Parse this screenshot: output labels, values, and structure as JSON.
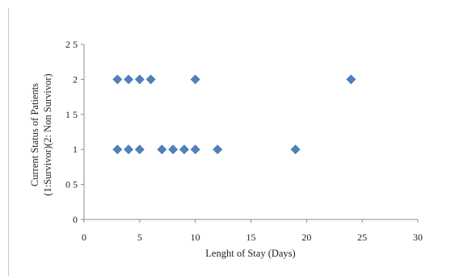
{
  "chart_data": {
    "type": "scatter",
    "title": "",
    "xlabel": "Lenght of Stay (Days)",
    "ylabel_lines": [
      "Current Status of Patients",
      "(1:Survivor)(2: Non Survivor)"
    ],
    "xlim": [
      0,
      30
    ],
    "ylim": [
      0,
      2.5
    ],
    "x_ticks": [
      0,
      5,
      10,
      15,
      20,
      25,
      30
    ],
    "y_ticks": [
      0,
      0.5,
      1,
      1.5,
      2,
      2.5
    ],
    "x_tick_labels": [
      "0",
      "5",
      "10",
      "15",
      "20",
      "25",
      "30"
    ],
    "y_tick_labels": [
      "0",
      "0 5",
      "1",
      "1 5",
      "2",
      "2 5"
    ],
    "grid": false,
    "legend": false,
    "marker_color": "#4F81BD",
    "marker": "diamond",
    "points": [
      {
        "x": 3,
        "y": 2
      },
      {
        "x": 4,
        "y": 2
      },
      {
        "x": 5,
        "y": 2
      },
      {
        "x": 6,
        "y": 2
      },
      {
        "x": 10,
        "y": 2
      },
      {
        "x": 24,
        "y": 2
      },
      {
        "x": 3,
        "y": 1
      },
      {
        "x": 4,
        "y": 1
      },
      {
        "x": 5,
        "y": 1
      },
      {
        "x": 7,
        "y": 1
      },
      {
        "x": 8,
        "y": 1
      },
      {
        "x": 9,
        "y": 1
      },
      {
        "x": 10,
        "y": 1
      },
      {
        "x": 12,
        "y": 1
      },
      {
        "x": 19,
        "y": 1
      }
    ]
  }
}
